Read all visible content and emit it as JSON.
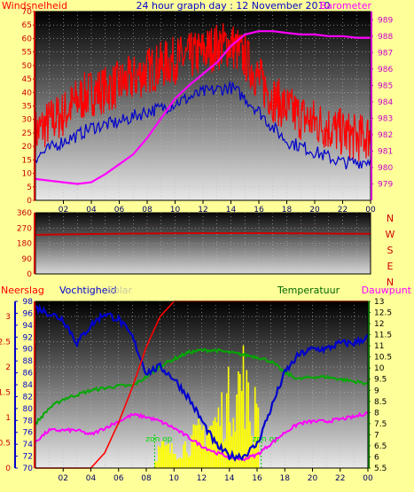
{
  "header": {
    "title": "24 hour graph day : 12 November 2010",
    "left_label": "Windsnelheid",
    "right_label": "Barometer"
  },
  "direction_letters": [
    "N",
    "W",
    "S",
    "E",
    "N"
  ],
  "bottom_labels": {
    "left": "Neerslag",
    "humidity": "Vochtigheid",
    "solar_faded": "Solar",
    "temperature": "Temperatuur",
    "dewpoint": "Dauwpunt"
  },
  "x_ticks": [
    "02",
    "04",
    "06",
    "08",
    "10",
    "12",
    "14",
    "16",
    "18",
    "20",
    "22",
    "00"
  ],
  "colors": {
    "background": "#ffff99",
    "title": "#0000cc",
    "wind": "#ff0000",
    "gust": "#0000cc",
    "barometer": "#ff00ff",
    "direction": "#cc0000",
    "humidity": "#0000cc",
    "temperature": "#00aa00",
    "dewpoint": "#ff00ff",
    "rain": "#ff0000",
    "solar": "#ffff00",
    "axis_red": "#cc0000",
    "axis_blue": "#0000cc",
    "axis_magenta": "#cc00cc"
  },
  "chart_data": [
    {
      "type": "line",
      "name": "wind-barometer",
      "x_hours": [
        0,
        1,
        2,
        3,
        4,
        5,
        6,
        7,
        8,
        9,
        10,
        11,
        12,
        13,
        14,
        15,
        16,
        17,
        18,
        19,
        20,
        21,
        22,
        23,
        24
      ],
      "y_ticks_left": [
        0,
        5,
        10,
        15,
        20,
        25,
        30,
        35,
        40,
        45,
        50,
        55,
        60,
        65,
        70
      ],
      "y_ticks_right": [
        979,
        980,
        981,
        982,
        983,
        984,
        985,
        986,
        987,
        988,
        989
      ],
      "ylim_left": [
        0,
        70
      ],
      "ylim_right": [
        978,
        989.5
      ],
      "series": [
        {
          "key": "wind",
          "axis": "left",
          "values": [
            25,
            29,
            32,
            37,
            40,
            41,
            43,
            45,
            48,
            50,
            52,
            53,
            55,
            57,
            58,
            53,
            45,
            38,
            34,
            31,
            29,
            27,
            25,
            23,
            24
          ]
        },
        {
          "key": "gust",
          "axis": "left",
          "values": [
            16,
            19,
            22,
            24,
            27,
            28,
            29,
            31,
            33,
            34,
            36,
            38,
            40,
            41,
            42,
            38,
            33,
            27,
            22,
            20,
            18,
            16,
            14,
            14,
            15
          ]
        },
        {
          "key": "barometer",
          "axis": "right",
          "values": [
            979.3,
            979.2,
            979.1,
            979.0,
            979.1,
            979.6,
            980.2,
            980.8,
            981.8,
            983.0,
            984.2,
            985.0,
            985.7,
            986.4,
            987.4,
            988.1,
            988.3,
            988.3,
            988.2,
            988.1,
            988.1,
            988.0,
            988.0,
            987.9,
            987.9
          ]
        }
      ]
    },
    {
      "type": "line",
      "name": "wind-direction",
      "x_hours": [
        0,
        4,
        8,
        12,
        16,
        20,
        24
      ],
      "y_ticks": [
        0,
        90,
        180,
        270,
        360
      ],
      "ylim": [
        0,
        360
      ],
      "series": [
        {
          "key": "direction",
          "values": [
            230,
            235,
            238,
            240,
            240,
            238,
            236
          ]
        }
      ]
    },
    {
      "type": "line",
      "name": "rain-humidity-temperature",
      "x_hours": [
        0,
        1,
        2,
        3,
        4,
        5,
        6,
        7,
        8,
        9,
        10,
        11,
        12,
        13,
        14,
        15,
        16,
        17,
        18,
        19,
        20,
        21,
        22,
        23,
        24
      ],
      "y_ticks_rain": [
        0,
        0.5,
        1,
        1.5,
        2,
        2.5,
        3
      ],
      "ylim_rain": [
        0,
        3.3
      ],
      "y_ticks_humidity": [
        70,
        72,
        74,
        76,
        78,
        80,
        82,
        84,
        86,
        88,
        90,
        92,
        94,
        96,
        98
      ],
      "ylim_humidity": [
        70,
        98
      ],
      "y_ticks_temp": [
        5.5,
        6,
        6.5,
        7,
        7.5,
        8,
        8.5,
        9,
        9.5,
        10,
        10.5,
        11,
        11.5,
        12,
        12.5,
        13
      ],
      "ylim_temp": [
        5.5,
        13
      ],
      "sun_labels": [
        "zon op",
        "zon op"
      ],
      "series": [
        {
          "key": "rain",
          "axis": "rain",
          "values": [
            0,
            0,
            0,
            0,
            0,
            0.3,
            0.9,
            1.6,
            2.4,
            3.0,
            3.3,
            3.3,
            3.3,
            3.3,
            3.3,
            3.3,
            3.3,
            3.3,
            3.3,
            3.3,
            3.3,
            3.3,
            3.3,
            3.3,
            3.3
          ]
        },
        {
          "key": "humidity",
          "axis": "humidity",
          "values": [
            97,
            96,
            95,
            91,
            94,
            96,
            95,
            92,
            86,
            87,
            85,
            82,
            78,
            74,
            72,
            72,
            74,
            80,
            86,
            89,
            90,
            90,
            91,
            91,
            92
          ]
        },
        {
          "key": "temperature",
          "axis": "temp",
          "values": [
            7.5,
            8.2,
            8.6,
            8.8,
            9.0,
            9.1,
            9.2,
            9.2,
            9.6,
            10.1,
            10.4,
            10.7,
            10.8,
            10.8,
            10.7,
            10.6,
            10.5,
            10.3,
            9.8,
            9.5,
            9.6,
            9.6,
            9.5,
            9.4,
            9.3
          ]
        },
        {
          "key": "dewpoint",
          "axis": "temp",
          "values": [
            6.7,
            7.2,
            7.2,
            7.2,
            7.0,
            7.3,
            7.6,
            7.9,
            7.8,
            7.6,
            7.3,
            6.9,
            6.5,
            6.2,
            6.0,
            5.9,
            6.1,
            6.6,
            7.1,
            7.5,
            7.6,
            7.6,
            7.7,
            7.8,
            8.0
          ]
        },
        {
          "key": "solar",
          "axis": "rain",
          "values": [
            0,
            0,
            0,
            0,
            0,
            0,
            0,
            0,
            0,
            0.5,
            0.4,
            0.6,
            0.9,
            1.1,
            1.7,
            2.2,
            0,
            0,
            0,
            0,
            0,
            0,
            0,
            0,
            0
          ]
        }
      ]
    }
  ]
}
